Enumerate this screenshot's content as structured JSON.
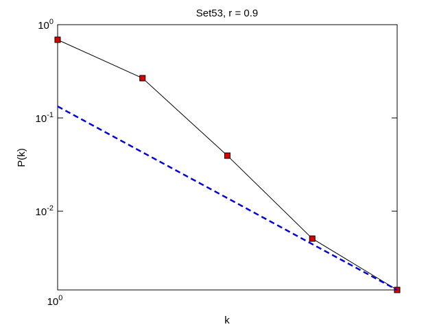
{
  "chart_data": {
    "type": "line",
    "title": "Set53, r = 0.9",
    "xlabel": "k",
    "ylabel": "P(k)",
    "xscale": "log",
    "yscale": "log",
    "x": [
      1,
      2,
      4,
      8,
      16
    ],
    "series": [
      {
        "color": "#000000",
        "marker_color": "#dd0000",
        "values": [
          0.689,
          0.267,
          0.0394,
          0.00508,
          0.00143
        ]
      },
      {
        "color": "#0000dd",
        "dashed": true,
        "values": [
          0.133,
          0.0428,
          0.0138,
          0.00443,
          0.00143
        ]
      }
    ],
    "xlim": [
      1,
      16
    ],
    "ylim": [
      0.00143,
      1
    ],
    "xticks": [
      {
        "value": 1,
        "label": "10^0"
      }
    ],
    "yticks": [
      {
        "value": 1,
        "label": "10^0"
      },
      {
        "value": 0.1,
        "label": "10^-1"
      },
      {
        "value": 0.01,
        "label": "10^-2"
      }
    ]
  }
}
